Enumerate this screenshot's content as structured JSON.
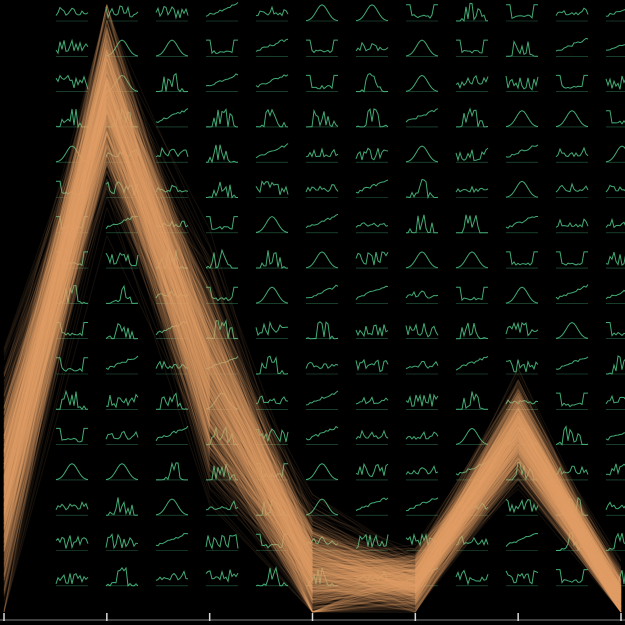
{
  "colors": {
    "background": "#000000",
    "line": "#e8a26a",
    "thumbnail": "#4ec98a",
    "axis": "#d8d8d8"
  },
  "chart_data": {
    "type": "line",
    "description_layers": [
      "parallel-coordinates-bundle",
      "histogram-thumbnail-grid"
    ],
    "title": "",
    "xlabel": "",
    "ylabel": "",
    "dimensions": 7,
    "mean_profile": {
      "x": [
        0,
        1,
        2,
        3,
        4,
        5,
        6
      ],
      "y": [
        0.21,
        0.86,
        0.39,
        0.07,
        0.05,
        0.3,
        0.02
      ]
    },
    "spread": [
      0.2,
      0.16,
      0.18,
      0.1,
      0.05,
      0.08,
      0.05
    ],
    "line_count": 900,
    "ylim": [
      0,
      1
    ],
    "grid": false,
    "legend": "none",
    "thumbnail_grid": {
      "rows": 17,
      "cols": 12
    }
  }
}
